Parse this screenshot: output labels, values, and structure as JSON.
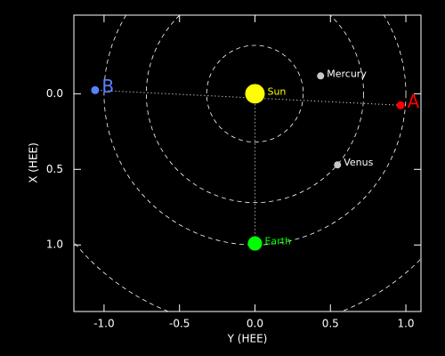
{
  "chart_data": {
    "type": "scatter",
    "xlabel": "Y (HEE)",
    "ylabel": "X (HEE)",
    "xlim": [
      -1.2,
      1.1
    ],
    "ylim": [
      -0.52,
      1.44
    ],
    "xticks": [
      {
        "value": -1.0,
        "label": "-1.0"
      },
      {
        "value": -0.5,
        "label": "-0.5"
      },
      {
        "value": 0,
        "label": "0.0"
      },
      {
        "value": 0.5,
        "label": "0.5"
      },
      {
        "value": 1.0,
        "label": "1.0"
      }
    ],
    "yticks": [
      {
        "value": 0,
        "label": "0.0"
      },
      {
        "value": 0.5,
        "label": "0.5"
      },
      {
        "value": 1.0,
        "label": "1.0"
      }
    ],
    "orbits": [
      0.32,
      0.72,
      1.0,
      1.55
    ],
    "series": [
      {
        "name": "Sun",
        "color": "#ffff00",
        "x": [
          0
        ],
        "values": [
          0
        ]
      },
      {
        "name": "Mercury",
        "color": "#c8c8c8",
        "x": [
          0.435
        ],
        "values": [
          -0.118
        ]
      },
      {
        "name": "Venus",
        "color": "#c8c8c8",
        "x": [
          0.547
        ],
        "values": [
          0.47
        ]
      },
      {
        "name": "Earth",
        "color": "#00ff00",
        "x": [
          0
        ],
        "values": [
          0.99
        ]
      },
      {
        "name": "A",
        "color": "#ff0000",
        "x": [
          0.965
        ],
        "values": [
          0.076
        ]
      },
      {
        "name": "B",
        "color": "#5a82ff",
        "x": [
          -1.059
        ],
        "values": [
          -0.024
        ]
      }
    ]
  }
}
